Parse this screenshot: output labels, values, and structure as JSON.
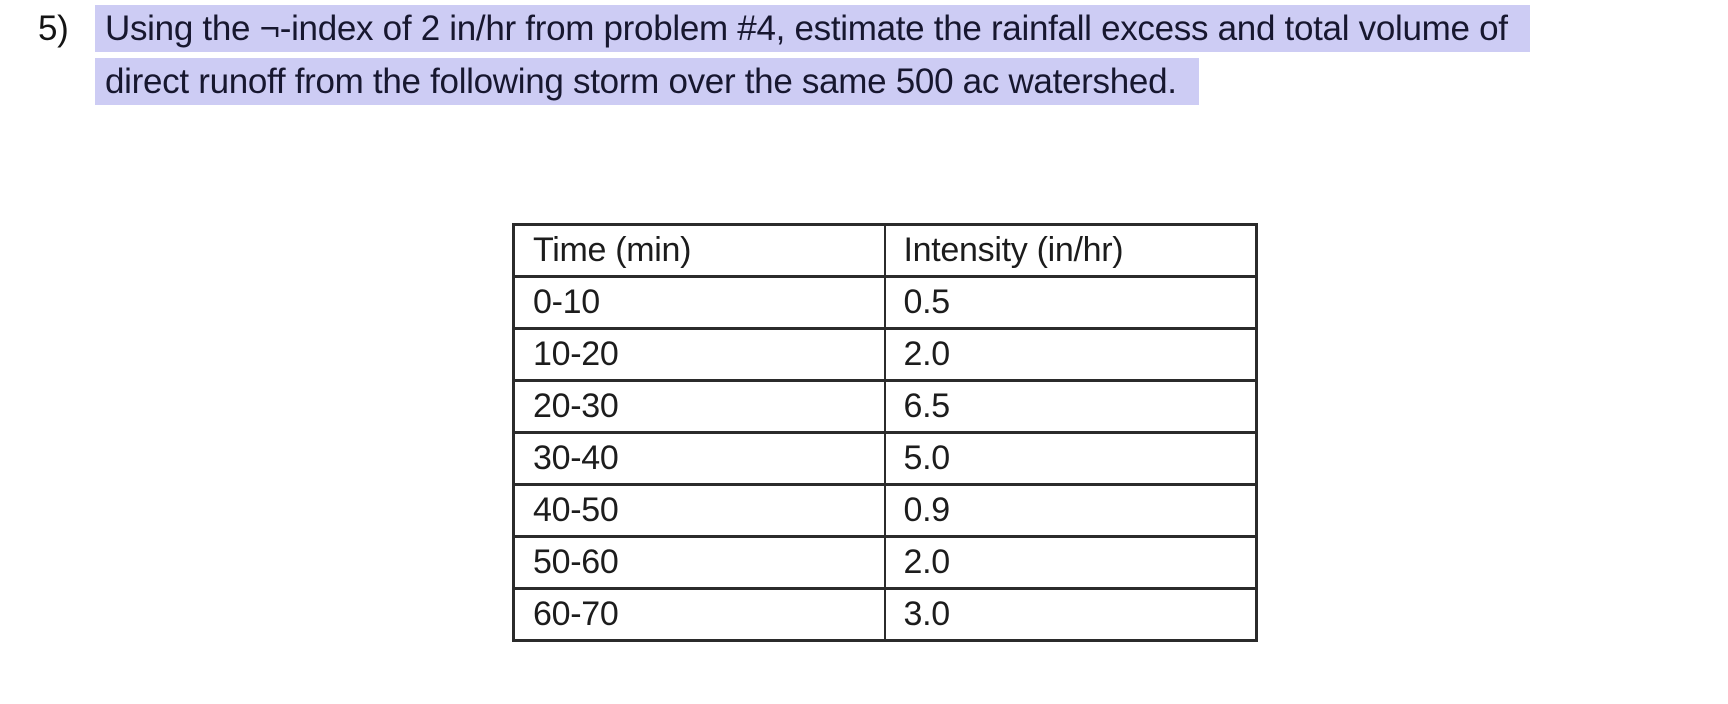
{
  "problem": {
    "number": "5)",
    "line1": "Using the ¬-index of 2 in/hr from problem #4, estimate the rainfall excess and total volume of",
    "line2": "direct runoff from the following storm over the same 500 ac watershed.",
    "highlight_color": "#cdccf4",
    "highlight_text_color": "#17172f"
  },
  "table": {
    "headers": [
      "Time (min)",
      "Intensity (in/hr)"
    ],
    "rows": [
      [
        "0-10",
        "0.5"
      ],
      [
        "10-20",
        "2.0"
      ],
      [
        "20-30",
        "6.5"
      ],
      [
        "30-40",
        "5.0"
      ],
      [
        "40-50",
        "0.9"
      ],
      [
        "50-60",
        "2.0"
      ],
      [
        "60-70",
        "3.0"
      ]
    ],
    "border_color": "#2b2b2b"
  }
}
